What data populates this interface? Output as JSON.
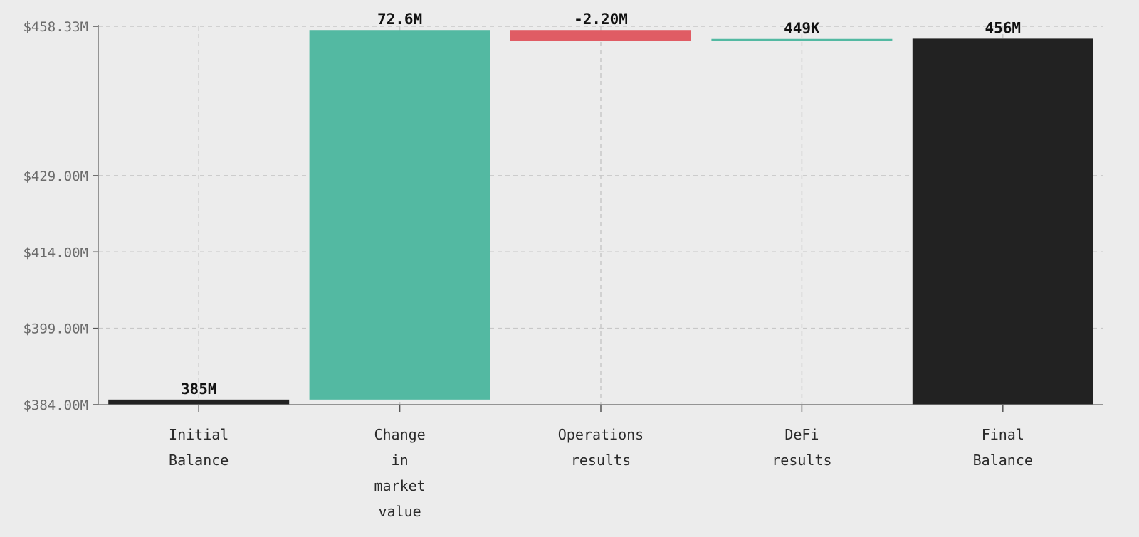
{
  "chart_data": {
    "type": "bar",
    "subtype": "waterfall",
    "categories": [
      [
        "Initial",
        "Balance"
      ],
      [
        "Change",
        "in",
        "market",
        "value"
      ],
      [
        "Operations",
        "results"
      ],
      [
        "DeFi",
        "results"
      ],
      [
        "Final",
        "Balance"
      ]
    ],
    "bars": [
      {
        "kind": "total",
        "start": 384.0,
        "end": 385.0,
        "value_label": "385M"
      },
      {
        "kind": "increase",
        "start": 385.0,
        "end": 457.6,
        "value_label": "72.6M"
      },
      {
        "kind": "decrease",
        "start": 457.6,
        "end": 455.4,
        "value_label": "-2.20M"
      },
      {
        "kind": "increase",
        "start": 455.4,
        "end": 455.85,
        "value_label": "449K"
      },
      {
        "kind": "total",
        "start": 384.0,
        "end": 455.9,
        "value_label": "456M"
      }
    ],
    "ylim": [
      384.0,
      458.33
    ],
    "yticks": [
      {
        "value": 384.0,
        "label": "$384.00M"
      },
      {
        "value": 399.0,
        "label": "$399.00M"
      },
      {
        "value": 414.0,
        "label": "$414.00M"
      },
      {
        "value": 429.0,
        "label": "$429.00M"
      },
      {
        "value": 458.33,
        "label": "$458.33M"
      }
    ],
    "grid": true,
    "colors": {
      "total": "#222222",
      "increase": "#53b9a2",
      "decrease": "#e05c64"
    },
    "title": "",
    "xlabel": "",
    "ylabel": ""
  }
}
